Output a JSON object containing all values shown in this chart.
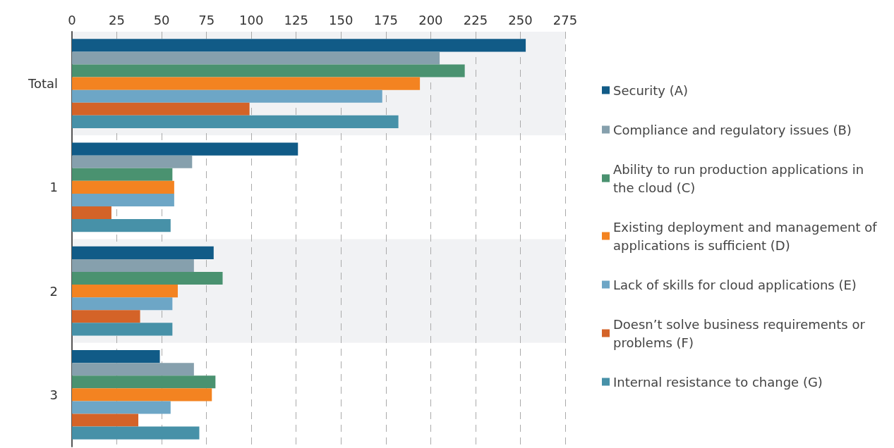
{
  "chart_data": {
    "type": "bar",
    "orientation": "horizontal",
    "categories": [
      "Total",
      "1",
      "2",
      "3"
    ],
    "series": [
      {
        "name": "Security (A)",
        "color": "#115b87",
        "values": [
          253,
          126,
          79,
          49
        ]
      },
      {
        "name": "Compliance and regulatory issues (B)",
        "color": "#86a0ad",
        "values": [
          205,
          67,
          68,
          68
        ]
      },
      {
        "name": "Ability to run production applications in the cloud (C)",
        "color": "#4a9270",
        "values": [
          219,
          56,
          84,
          80
        ]
      },
      {
        "name": "Existing deployment and management of applications is sufficient (D)",
        "color": "#f38321",
        "values": [
          194,
          57,
          59,
          78
        ]
      },
      {
        "name": "Lack of skills for cloud applications (E)",
        "color": "#6da6c6",
        "values": [
          173,
          57,
          56,
          55
        ]
      },
      {
        "name": "Doesn’t solve business requirements or problems (F)",
        "color": "#d46328",
        "values": [
          99,
          22,
          38,
          37
        ]
      },
      {
        "name": "Internal resistance to change (G)",
        "color": "#4791a8",
        "values": [
          182,
          55,
          56,
          71
        ]
      }
    ],
    "xlim": [
      0,
      275
    ],
    "xticks": [
      0,
      25,
      50,
      75,
      100,
      125,
      150,
      175,
      200,
      225,
      250,
      275
    ],
    "grid": "x",
    "legend": "right"
  }
}
